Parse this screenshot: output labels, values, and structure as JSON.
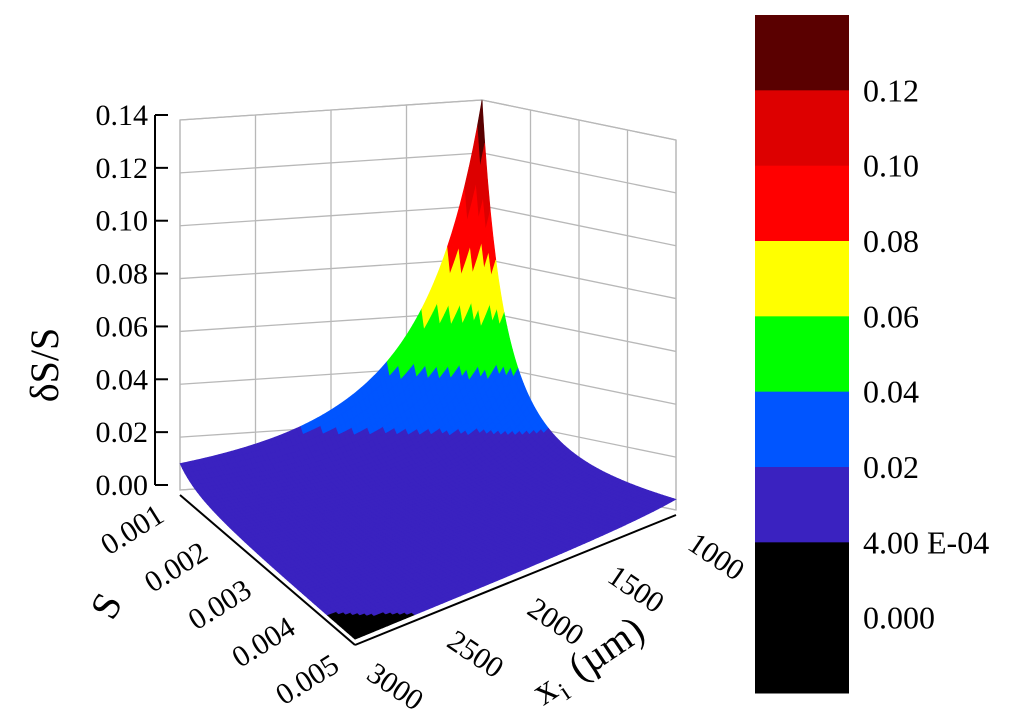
{
  "chart_data": {
    "type": "surface3d",
    "title": "",
    "zlabel": "δS/S",
    "xlabel": "S",
    "ylabel_main": "x",
    "ylabel_sub": "i",
    "ylabel_unit": "(µm)",
    "zlim": [
      0,
      0.14
    ],
    "xlim": [
      0.001,
      0.005
    ],
    "ylim": [
      1000,
      3000
    ],
    "z_ticks": [
      "0.00",
      "0.02",
      "0.04",
      "0.06",
      "0.08",
      "0.10",
      "0.12",
      "0.14"
    ],
    "s_ticks": [
      "0.001",
      "0.002",
      "0.003",
      "0.004",
      "0.005"
    ],
    "x_ticks": [
      "1000",
      "1500",
      "2000",
      "2500",
      "3000"
    ],
    "grid": true,
    "surface_description_levels": [
      {
        "from": 0.12,
        "to": 0.14,
        "color": "#5a0000"
      },
      {
        "from": 0.1,
        "to": 0.12,
        "color": "#dd0000"
      },
      {
        "from": 0.08,
        "to": 0.1,
        "color": "#ff0000"
      },
      {
        "from": 0.06,
        "to": 0.08,
        "color": "#ffff00"
      },
      {
        "from": 0.04,
        "to": 0.06,
        "color": "#00ff00"
      },
      {
        "from": 0.02,
        "to": 0.04,
        "color": "#0055ff"
      },
      {
        "from": 0.0004,
        "to": 0.02,
        "color": "#3a22c0"
      },
      {
        "from": 0.0,
        "to": 0.0004,
        "color": "#000000"
      }
    ],
    "colorbar": {
      "labels": [
        "0.12",
        "0.10",
        "0.08",
        "0.06",
        "0.04",
        "0.02",
        "4.00 E-04",
        "0.000"
      ],
      "colors": [
        "#5a0000",
        "#dd0000",
        "#ff0000",
        "#ffff00",
        "#00ff00",
        "#0055ff",
        "#3a22c0",
        "#000000",
        "#000000"
      ]
    }
  }
}
